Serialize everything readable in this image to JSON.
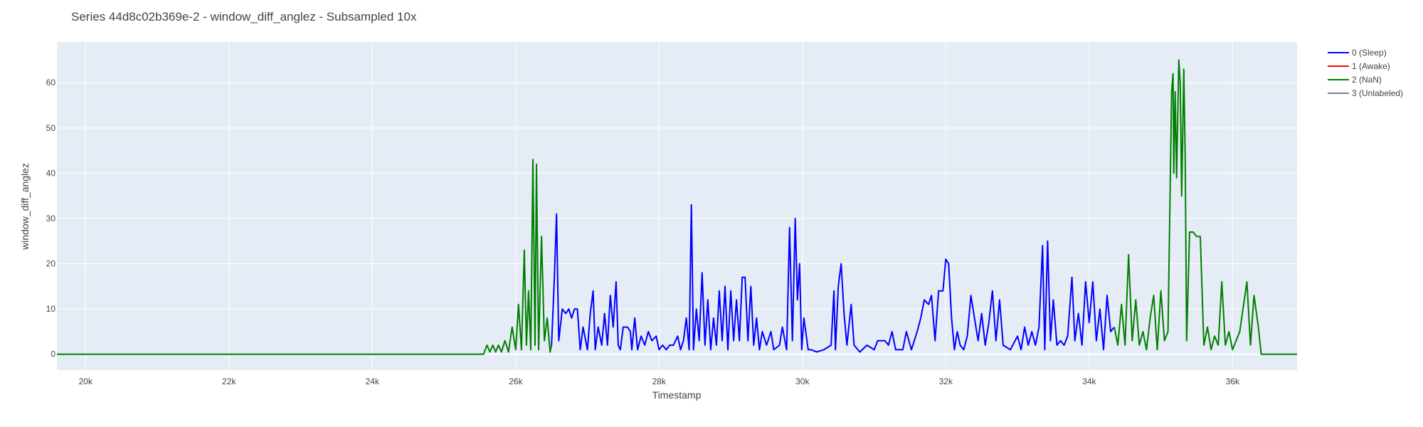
{
  "chart_data": {
    "type": "line",
    "title": "Series 44d8c02b369e-2 - window_diff_anglez - Subsampled 10x",
    "xlabel": "Timestamp",
    "ylabel": "window_diff_anglez",
    "xlim": [
      19600,
      36900
    ],
    "ylim": [
      -3.5,
      69
    ],
    "xticks": [
      20000,
      22000,
      24000,
      26000,
      28000,
      30000,
      32000,
      34000,
      36000
    ],
    "xtick_labels": [
      "20k",
      "22k",
      "24k",
      "26k",
      "28k",
      "30k",
      "32k",
      "34k",
      "36k"
    ],
    "yticks": [
      0,
      10,
      20,
      30,
      40,
      50,
      60
    ],
    "ytick_labels": [
      "0",
      "10",
      "20",
      "30",
      "40",
      "50",
      "60"
    ],
    "grid": true,
    "legend_position": "top-right",
    "colors": {
      "plot_bg": "#e5ecf6",
      "grid": "#ffffff",
      "sleep": "#0000ff",
      "awake": "#ff0000",
      "nan": "#008000",
      "unlabeled": "#808080"
    },
    "series": [
      {
        "name": "0 (Sleep)",
        "color": "#0000ff",
        "segments": [
          [
            [
              26500,
              2
            ],
            [
              26540,
              17
            ],
            [
              26570,
              31
            ],
            [
              26600,
              3
            ],
            [
              26650,
              10
            ],
            [
              26700,
              9
            ],
            [
              26740,
              10
            ],
            [
              26780,
              8
            ],
            [
              26820,
              10
            ],
            [
              26860,
              10
            ],
            [
              26900,
              1
            ],
            [
              26940,
              6
            ],
            [
              27000,
              1
            ],
            [
              27040,
              9
            ],
            [
              27080,
              14
            ],
            [
              27110,
              1
            ],
            [
              27150,
              6
            ],
            [
              27200,
              2
            ],
            [
              27240,
              9
            ],
            [
              27280,
              2
            ],
            [
              27320,
              13
            ],
            [
              27360,
              6
            ],
            [
              27400,
              16
            ],
            [
              27430,
              2
            ],
            [
              27460,
              1
            ],
            [
              27500,
              6
            ],
            [
              27560,
              6
            ],
            [
              27600,
              5
            ],
            [
              27620,
              1
            ],
            [
              27660,
              8
            ],
            [
              27700,
              1
            ],
            [
              27750,
              4
            ],
            [
              27800,
              2
            ],
            [
              27850,
              5
            ],
            [
              27900,
              3
            ],
            [
              27960,
              4
            ],
            [
              28000,
              1
            ],
            [
              28050,
              2
            ],
            [
              28100,
              1
            ],
            [
              28150,
              2
            ],
            [
              28200,
              2
            ],
            [
              28260,
              4
            ],
            [
              28300,
              1
            ],
            [
              28340,
              3
            ],
            [
              28380,
              8
            ],
            [
              28420,
              1
            ],
            [
              28450,
              33
            ],
            [
              28480,
              1
            ],
            [
              28520,
              10
            ],
            [
              28560,
              3
            ],
            [
              28600,
              18
            ],
            [
              28640,
              2
            ],
            [
              28680,
              12
            ],
            [
              28720,
              1
            ],
            [
              28760,
              8
            ],
            [
              28800,
              2
            ],
            [
              28840,
              14
            ],
            [
              28880,
              3
            ],
            [
              28920,
              15
            ],
            [
              28960,
              1
            ],
            [
              29000,
              14
            ],
            [
              29040,
              3
            ],
            [
              29080,
              12
            ],
            [
              29120,
              3
            ],
            [
              29160,
              17
            ],
            [
              29200,
              17
            ],
            [
              29240,
              3
            ],
            [
              29280,
              15
            ],
            [
              29320,
              2
            ],
            [
              29360,
              8
            ],
            [
              29400,
              1
            ],
            [
              29440,
              5
            ],
            [
              29500,
              2
            ],
            [
              29560,
              5
            ],
            [
              29600,
              1
            ],
            [
              29680,
              2
            ],
            [
              29720,
              6
            ],
            [
              29780,
              1
            ],
            [
              29820,
              28
            ],
            [
              29860,
              3
            ],
            [
              29900,
              30
            ],
            [
              29930,
              12
            ],
            [
              29960,
              20
            ],
            [
              29990,
              1
            ],
            [
              30020,
              8
            ],
            [
              30080,
              1
            ],
            [
              30120,
              1
            ],
            [
              30200,
              0.5
            ],
            [
              30300,
              1
            ],
            [
              30400,
              2
            ],
            [
              30440,
              14
            ],
            [
              30460,
              1
            ],
            [
              30500,
              15
            ],
            [
              30540,
              20
            ],
            [
              30580,
              9
            ],
            [
              30620,
              2
            ],
            [
              30680,
              11
            ],
            [
              30720,
              2
            ],
            [
              30800,
              0.5
            ],
            [
              30900,
              2
            ],
            [
              31000,
              1
            ],
            [
              31050,
              3
            ],
            [
              31150,
              3
            ],
            [
              31200,
              2
            ],
            [
              31250,
              5
            ],
            [
              31300,
              1
            ],
            [
              31400,
              1
            ],
            [
              31450,
              5
            ],
            [
              31520,
              1
            ],
            [
              31600,
              5
            ],
            [
              31650,
              8
            ],
            [
              31700,
              12
            ],
            [
              31760,
              11
            ],
            [
              31800,
              13
            ],
            [
              31850,
              3
            ],
            [
              31900,
              14
            ],
            [
              31960,
              14
            ],
            [
              32000,
              21
            ],
            [
              32040,
              20
            ],
            [
              32080,
              8
            ],
            [
              32120,
              1
            ],
            [
              32160,
              5
            ],
            [
              32200,
              2
            ],
            [
              32250,
              1
            ],
            [
              32300,
              4
            ],
            [
              32350,
              13
            ],
            [
              32400,
              8
            ],
            [
              32450,
              3
            ],
            [
              32500,
              9
            ],
            [
              32550,
              2
            ],
            [
              32600,
              7
            ],
            [
              32650,
              14
            ],
            [
              32700,
              3
            ],
            [
              32750,
              12
            ],
            [
              32800,
              2
            ],
            [
              32900,
              1
            ],
            [
              33000,
              4
            ],
            [
              33050,
              1
            ],
            [
              33100,
              6
            ],
            [
              33150,
              2
            ],
            [
              33200,
              5
            ],
            [
              33250,
              2
            ],
            [
              33300,
              6
            ],
            [
              33350,
              24
            ],
            [
              33380,
              1
            ],
            [
              33420,
              25
            ],
            [
              33460,
              3
            ],
            [
              33500,
              12
            ],
            [
              33550,
              2
            ],
            [
              33600,
              3
            ],
            [
              33650,
              2
            ],
            [
              33700,
              4
            ],
            [
              33760,
              17
            ],
            [
              33800,
              3
            ],
            [
              33850,
              9
            ],
            [
              33900,
              2
            ],
            [
              33950,
              16
            ],
            [
              34000,
              7
            ],
            [
              34050,
              16
            ],
            [
              34100,
              3
            ],
            [
              34150,
              10
            ],
            [
              34200,
              1
            ],
            [
              34250,
              13
            ],
            [
              34300,
              5
            ],
            [
              34350,
              6
            ]
          ]
        ]
      },
      {
        "name": "1 (Awake)",
        "color": "#ff0000",
        "segments": []
      },
      {
        "name": "2 (NaN)",
        "color": "#008000",
        "segments": [
          [
            [
              19600,
              0
            ],
            [
              25550,
              0
            ],
            [
              25600,
              2
            ],
            [
              25640,
              0.5
            ],
            [
              25680,
              2
            ],
            [
              25720,
              0.5
            ],
            [
              25760,
              2
            ],
            [
              25800,
              0.5
            ],
            [
              25850,
              3
            ],
            [
              25900,
              0.5
            ],
            [
              25950,
              6
            ],
            [
              26000,
              1
            ],
            [
              26040,
              11
            ],
            [
              26080,
              1
            ],
            [
              26120,
              23
            ],
            [
              26150,
              2
            ],
            [
              26180,
              14
            ],
            [
              26210,
              1
            ],
            [
              26240,
              43
            ],
            [
              26270,
              2
            ],
            [
              26290,
              42
            ],
            [
              26320,
              1
            ],
            [
              26360,
              26
            ],
            [
              26400,
              3
            ],
            [
              26440,
              8
            ],
            [
              26480,
              0.5
            ],
            [
              26500,
              2
            ]
          ],
          [
            [
              34350,
              6
            ],
            [
              34400,
              2
            ],
            [
              34450,
              11
            ],
            [
              34500,
              2
            ],
            [
              34550,
              22
            ],
            [
              34600,
              3
            ],
            [
              34650,
              12
            ],
            [
              34700,
              2
            ],
            [
              34750,
              5
            ],
            [
              34800,
              1
            ],
            [
              34850,
              8
            ],
            [
              34900,
              13
            ],
            [
              34950,
              1
            ],
            [
              35000,
              14
            ],
            [
              35050,
              3
            ],
            [
              35100,
              5
            ],
            [
              35150,
              58
            ],
            [
              35170,
              62
            ],
            [
              35180,
              40
            ],
            [
              35200,
              58
            ],
            [
              35220,
              39
            ],
            [
              35250,
              65
            ],
            [
              35270,
              60
            ],
            [
              35290,
              35
            ],
            [
              35320,
              63
            ],
            [
              35340,
              43
            ],
            [
              35360,
              3
            ],
            [
              35400,
              27
            ],
            [
              35450,
              27
            ],
            [
              35500,
              26
            ],
            [
              35550,
              26
            ],
            [
              35600,
              2
            ],
            [
              35650,
              6
            ],
            [
              35700,
              1
            ],
            [
              35750,
              4
            ],
            [
              35800,
              2
            ],
            [
              35850,
              16
            ],
            [
              35900,
              2
            ],
            [
              35950,
              5
            ],
            [
              36000,
              1
            ],
            [
              36100,
              5
            ],
            [
              36200,
              16
            ],
            [
              36250,
              2
            ],
            [
              36300,
              13
            ],
            [
              36360,
              6
            ],
            [
              36400,
              0
            ],
            [
              36900,
              0
            ]
          ]
        ]
      },
      {
        "name": "3 (Unlabeled)",
        "color": "#808080",
        "segments": []
      }
    ]
  }
}
